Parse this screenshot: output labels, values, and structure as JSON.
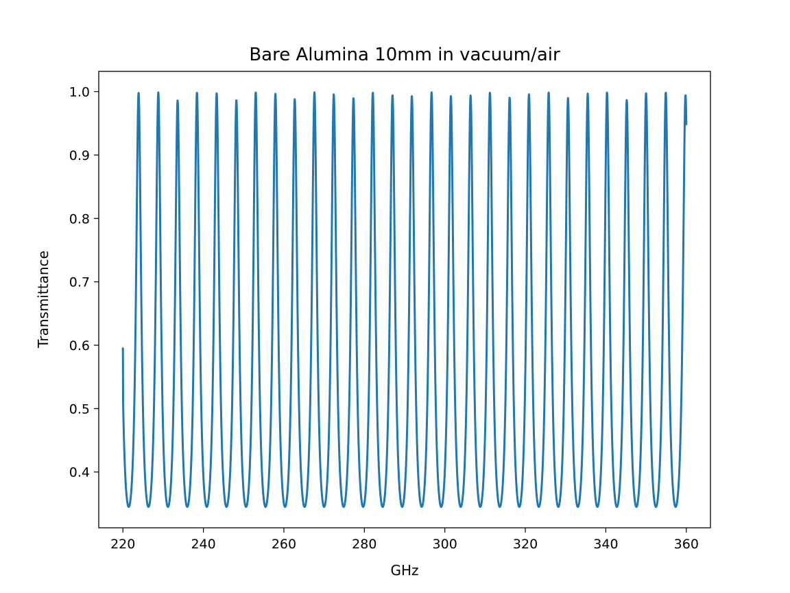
{
  "chart_data": {
    "type": "line",
    "title": "Bare Alumina 10mm in vacuum/air",
    "xlabel": "GHz",
    "ylabel": "Transmittance",
    "xlim": [
      214,
      366
    ],
    "ylim": [
      0.312,
      1.032
    ],
    "xticks": [
      220,
      240,
      260,
      280,
      300,
      320,
      340,
      360
    ],
    "yticks": [
      0.4,
      0.5,
      0.6,
      0.7,
      0.8,
      0.9,
      1.0
    ],
    "xtick_labels": [
      "220",
      "240",
      "260",
      "280",
      "300",
      "320",
      "340",
      "360"
    ],
    "ytick_labels": [
      "0.4",
      "0.5",
      "0.6",
      "0.7",
      "0.8",
      "0.9",
      "1.0"
    ],
    "grid": false,
    "legend": "none",
    "series": [
      {
        "color": "#1f77b4",
        "x_range": [
          220,
          360
        ],
        "peaks_x": [
          223.9,
          228.8,
          233.6,
          238.4,
          243.3,
          248.2,
          253.0,
          257.9,
          262.7,
          267.6,
          272.4,
          277.3,
          282.1,
          287.0,
          291.8,
          296.7,
          301.5,
          306.4,
          311.2,
          316.1,
          320.9,
          325.8,
          330.6,
          335.5,
          340.3,
          345.2,
          350.0,
          354.9
        ],
        "peaks_y": [
          0.998,
          0.999,
          0.986,
          0.999,
          0.998,
          0.987,
          0.999,
          0.997,
          0.988,
          0.999,
          0.996,
          0.99,
          0.999,
          0.995,
          0.993,
          0.999,
          0.993,
          0.994,
          0.999,
          0.991,
          0.996,
          0.999,
          0.99,
          0.997,
          0.999,
          0.987,
          0.998,
          0.999
        ],
        "start_value": 0.595,
        "end_value": 0.985,
        "min_value": 0.345
      }
    ]
  }
}
